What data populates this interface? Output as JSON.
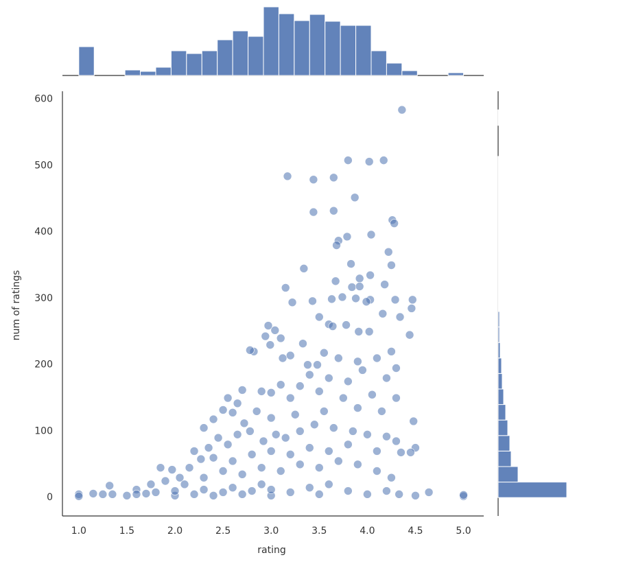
{
  "chart_data": [
    {
      "type": "scatter",
      "xlabel": "rating",
      "ylabel": "num of ratings",
      "color": "#4c72b0",
      "xlim": [
        0.83,
        5.21
      ],
      "ylim": [
        -27.7,
        612
      ],
      "xticks": [
        {
          "value": 1,
          "label": "1.0"
        },
        {
          "value": 1.5,
          "label": "1.5"
        },
        {
          "value": 2,
          "label": "2.0"
        },
        {
          "value": 2.5,
          "label": "2.5"
        },
        {
          "value": 3,
          "label": "3.0"
        },
        {
          "value": 3.5,
          "label": "3.5"
        },
        {
          "value": 4,
          "label": "4.0"
        },
        {
          "value": 4.5,
          "label": "4.5"
        },
        {
          "value": 5,
          "label": "5.0"
        }
      ],
      "yticks": [
        0,
        100,
        200,
        300,
        400,
        500,
        600
      ],
      "x": [
        4.36,
        3.8,
        4.17,
        4.02,
        3.17,
        3.44,
        3.65,
        3.87,
        3.44,
        3.65,
        4.26,
        4.28,
        4.04,
        3.79,
        3.7,
        3.68,
        3.83,
        4.22,
        4.25,
        3.34,
        3.67,
        3.84,
        3.15,
        4.03,
        4.18,
        3.92,
        3.92,
        3.43,
        3.22,
        3.63,
        3.74,
        3.88,
        4.03,
        4.29,
        4.47,
        3.99,
        4.46,
        4.16,
        4.34,
        3.5,
        3.6,
        3.64,
        2.97,
        3.04,
        3.78,
        3.91,
        4.02,
        2.94,
        3.1,
        4.44,
        3.33,
        2.99,
        2.82,
        2.78,
        3.2,
        3.12,
        3.55,
        3.38,
        3.48,
        3.7,
        3.9,
        4.1,
        4.25,
        3.95,
        4.3,
        3.4,
        3.6,
        3.8,
        4.2,
        3.1,
        3.3,
        2.9,
        3.0,
        2.7,
        2.55,
        2.65,
        2.85,
        3.2,
        3.5,
        3.75,
        4.05,
        4.3,
        2.5,
        2.6,
        2.4,
        2.3,
        2.72,
        3.0,
        3.25,
        3.55,
        3.9,
        4.15,
        4.48,
        2.2,
        2.27,
        2.35,
        2.45,
        2.55,
        2.65,
        2.78,
        2.92,
        3.05,
        3.15,
        3.3,
        3.45,
        3.65,
        3.85,
        4.0,
        4.2,
        4.3,
        4.5,
        1.85,
        1.97,
        2.05,
        2.15,
        2.4,
        2.6,
        2.8,
        3.0,
        3.2,
        3.4,
        3.6,
        3.8,
        4.1,
        4.35,
        4.45,
        1.32,
        1.6,
        1.75,
        1.9,
        2.1,
        2.3,
        2.5,
        2.7,
        2.9,
        3.1,
        3.3,
        3.5,
        3.7,
        3.9,
        4.1,
        4.25,
        1.0,
        1.0,
        1.15,
        1.25,
        1.35,
        1.5,
        1.6,
        1.7,
        1.8,
        2.0,
        2.0,
        2.2,
        2.3,
        2.4,
        2.5,
        2.6,
        2.7,
        2.8,
        2.9,
        3.0,
        3.0,
        3.2,
        3.4,
        3.5,
        3.6,
        3.8,
        4.0,
        4.2,
        4.33,
        4.5,
        4.64,
        5.0,
        5.0
      ],
      "values": [
        584,
        508,
        508,
        506,
        484,
        479,
        482,
        452,
        430,
        432,
        418,
        413,
        396,
        393,
        387,
        380,
        352,
        370,
        350,
        345,
        326,
        317,
        316,
        335,
        321,
        330,
        318,
        296,
        294,
        299,
        302,
        300,
        298,
        298,
        298,
        295,
        285,
        277,
        272,
        272,
        261,
        258,
        259,
        252,
        260,
        250,
        250,
        243,
        240,
        245,
        232,
        230,
        220,
        222,
        214,
        210,
        218,
        200,
        200,
        210,
        205,
        210,
        220,
        192,
        195,
        185,
        180,
        175,
        180,
        170,
        168,
        160,
        158,
        162,
        150,
        142,
        130,
        150,
        160,
        150,
        155,
        150,
        132,
        128,
        118,
        105,
        112,
        120,
        125,
        130,
        135,
        130,
        115,
        70,
        58,
        75,
        90,
        80,
        95,
        100,
        85,
        95,
        90,
        100,
        110,
        105,
        100,
        95,
        92,
        85,
        75,
        45,
        42,
        30,
        45,
        60,
        55,
        65,
        70,
        65,
        75,
        70,
        80,
        70,
        68,
        68,
        18,
        12,
        20,
        25,
        20,
        30,
        40,
        35,
        45,
        40,
        50,
        45,
        55,
        50,
        40,
        30,
        5,
        2,
        6,
        5,
        5,
        3,
        5,
        6,
        8,
        3,
        10,
        5,
        12,
        3,
        8,
        15,
        5,
        10,
        20,
        3,
        12,
        8,
        15,
        5,
        20,
        10,
        5,
        10,
        5,
        3,
        8,
        2,
        4
      ]
    },
    {
      "type": "histogram",
      "color": "#4c72b0",
      "bins": [
        1,
        1.16,
        1.32,
        1.48,
        1.64,
        1.8,
        1.96,
        2.12,
        2.28,
        2.44,
        2.6,
        2.76,
        2.92,
        3.08,
        3.24,
        3.4,
        3.56,
        3.72,
        3.88,
        4.04,
        4.2,
        4.36,
        4.52,
        4.68,
        4.84,
        5.0
      ],
      "counts": [
        42,
        0,
        0,
        8,
        6,
        12,
        36,
        32,
        36,
        52,
        65,
        57,
        100,
        90,
        80,
        89,
        79,
        73,
        73,
        36,
        18,
        7,
        0,
        0,
        4
      ]
    },
    {
      "type": "histogram",
      "orientation": "horizontal",
      "color": "#4c72b0",
      "bins": [
        0,
        23.36,
        46.72,
        70.08,
        93.44,
        116.8,
        140.16,
        163.52,
        186.88,
        210.24,
        233.6,
        256.96,
        280.32,
        303.68,
        327.04,
        350.4,
        373.76,
        397.12,
        420.48,
        443.84,
        467.2,
        490.56,
        513.92,
        537.28,
        560.64,
        584
      ],
      "counts": [
        100,
        29,
        19,
        17,
        14,
        11,
        8,
        6,
        5,
        3,
        2,
        2,
        1,
        1,
        1,
        1,
        1,
        1,
        1,
        1,
        1,
        1,
        0,
        0,
        1
      ]
    }
  ]
}
